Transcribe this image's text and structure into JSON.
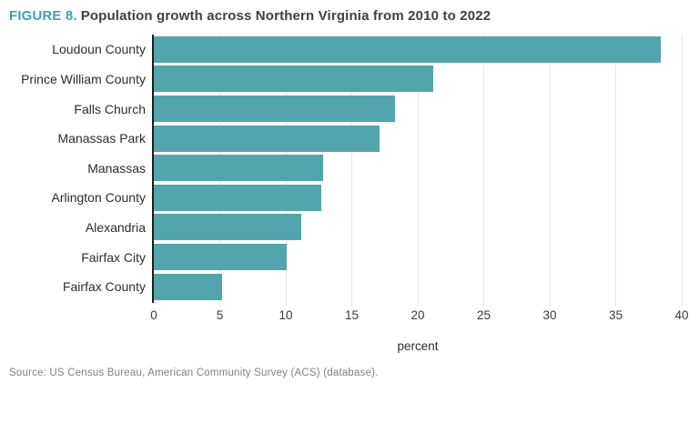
{
  "title": {
    "label": "FIGURE 8.",
    "text": "Population growth across Northern Virginia from 2010 to 2022"
  },
  "source": "Source: US Census Bureau, American Community Survey (ACS) (database).",
  "colors": {
    "accent_teal": "#3F9FB8",
    "bar_teal": "#52A5AC",
    "axis_dark": "#1D1D1F",
    "gridline_gray": "#E6E6E6",
    "title_dark": "#414042",
    "source_gray": "#808184"
  },
  "chart_data": {
    "type": "bar",
    "orientation": "horizontal",
    "title": "Population growth across Northern Virginia from 2010 to 2022",
    "categories": [
      "Loudoun County",
      "Prince William County",
      "Falls Church",
      "Manassas Park",
      "Manassas",
      "Arlington County",
      "Alexandria",
      "Fairfax City",
      "Fairfax County"
    ],
    "values": [
      38.4,
      21.2,
      18.3,
      17.1,
      12.8,
      12.7,
      11.2,
      10.1,
      5.2
    ],
    "xlabel": "percent",
    "ylabel": "",
    "xlim": [
      0,
      40
    ],
    "xticks": [
      0,
      5,
      10,
      15,
      20,
      25,
      30,
      35,
      40
    ],
    "grid": true,
    "legend": "none",
    "bar_color": "#52A5AC"
  }
}
